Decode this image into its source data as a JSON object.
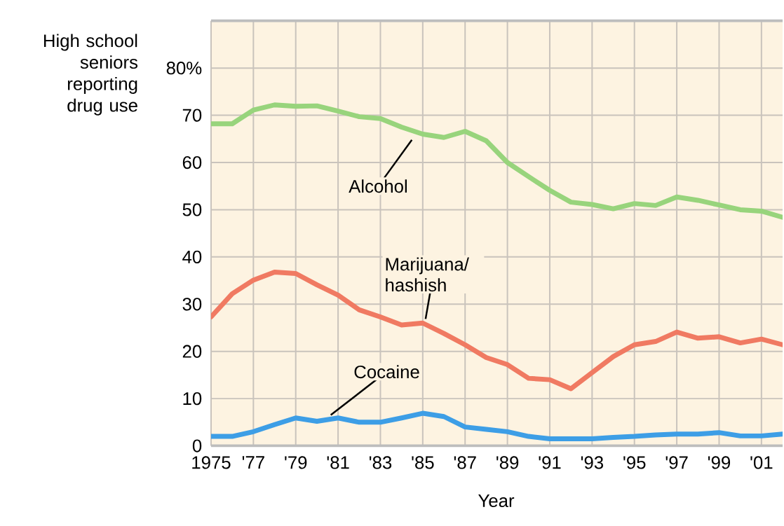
{
  "chart_data": {
    "type": "line",
    "ylabel": "High school seniors reporting drug use",
    "xlabel": "Year",
    "x": [
      1975,
      1976,
      1977,
      1978,
      1979,
      1980,
      1981,
      1982,
      1983,
      1984,
      1985,
      1986,
      1987,
      1988,
      1989,
      1990,
      1991,
      1992,
      1993,
      1994,
      1995,
      1996,
      1997,
      1998,
      1999,
      2000,
      2001,
      2002
    ],
    "series": [
      {
        "name": "Alcohol",
        "color": "#98d47c",
        "values": [
          68.2,
          68.2,
          71.1,
          72.2,
          71.9,
          72.0,
          70.9,
          69.7,
          69.3,
          67.5,
          66.0,
          65.3,
          66.6,
          64.6,
          60.0,
          57.0,
          54.1,
          51.6,
          51.1,
          50.2,
          51.3,
          50.9,
          52.7,
          52.0,
          51.0,
          50.0,
          49.7,
          48.4
        ]
      },
      {
        "name": "Marijuana/ hashish",
        "color": "#f07a62",
        "values": [
          27.3,
          32.2,
          35.1,
          36.8,
          36.5,
          34.1,
          31.9,
          28.8,
          27.3,
          25.6,
          26.0,
          23.8,
          21.4,
          18.7,
          17.2,
          14.3,
          14.0,
          12.1,
          15.5,
          18.9,
          21.4,
          22.1,
          24.1,
          22.8,
          23.1,
          21.8,
          22.6,
          21.4
        ]
      },
      {
        "name": "Cocaine",
        "color": "#3d9ee6",
        "values": [
          2.0,
          2.0,
          3.0,
          4.5,
          5.9,
          5.2,
          5.9,
          5.0,
          5.0,
          5.9,
          6.9,
          6.2,
          4.0,
          3.5,
          3.0,
          2.0,
          1.5,
          1.5,
          1.5,
          1.8,
          2.0,
          2.3,
          2.5,
          2.5,
          2.8,
          2.1,
          2.1,
          2.5
        ]
      }
    ],
    "xlim": [
      1975,
      2002
    ],
    "ylim": [
      0,
      90
    ],
    "xticks": [
      1975,
      {
        "value": 1977,
        "label": "'77"
      },
      {
        "value": 1979,
        "label": "'79"
      },
      {
        "value": 1981,
        "label": "'81"
      },
      {
        "value": 1983,
        "label": "'83"
      },
      {
        "value": 1985,
        "label": "'85"
      },
      {
        "value": 1987,
        "label": "'87"
      },
      {
        "value": 1989,
        "label": "'89"
      },
      {
        "value": 1991,
        "label": "'91"
      },
      {
        "value": 1993,
        "label": "'93"
      },
      {
        "value": 1995,
        "label": "'95"
      },
      {
        "value": 1997,
        "label": "'97"
      },
      {
        "value": 1999,
        "label": "'99"
      },
      {
        "value": 2001,
        "label": "'01"
      }
    ],
    "yticks": [
      0,
      10,
      20,
      30,
      40,
      50,
      60,
      70,
      {
        "value": 80,
        "label": "80%"
      }
    ],
    "grid": true,
    "line_style": "solid",
    "marker": "none"
  }
}
